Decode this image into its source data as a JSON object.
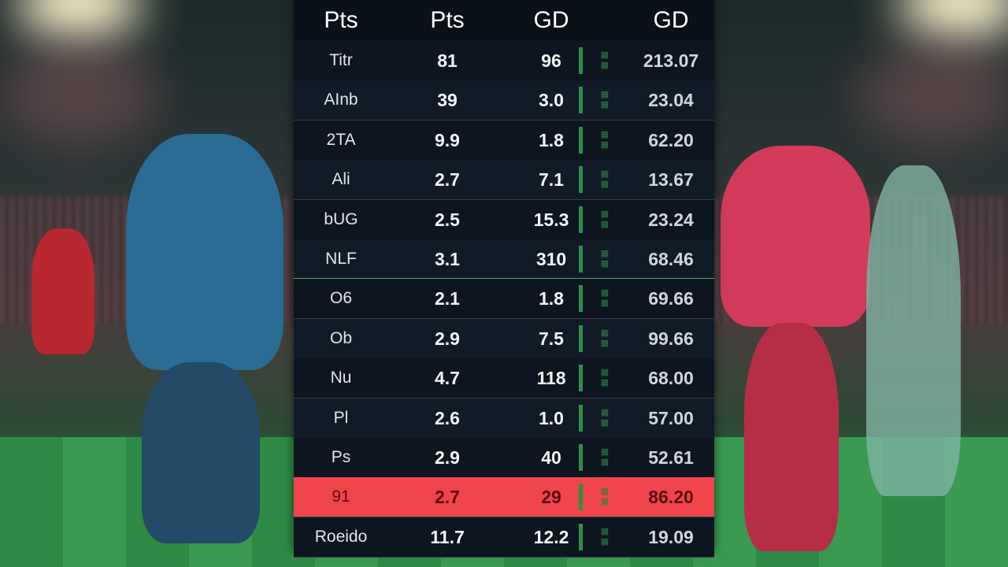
{
  "table": {
    "headers": [
      "Pts",
      "Pts",
      "GD",
      "GD"
    ],
    "rows": [
      [
        "Titr",
        "81",
        "96",
        "213.07"
      ],
      [
        "AInb",
        "39",
        "3.0",
        "23.04"
      ],
      [
        "2TA",
        "9.9",
        "1.8",
        "62.20"
      ],
      [
        "Ali",
        "2.7",
        "7.1",
        "13.67"
      ],
      [
        "bUG",
        "2.5",
        "15.3",
        "23.24"
      ],
      [
        "NLF",
        "3.1",
        "310",
        "68.46"
      ],
      [
        "O6",
        "2.1",
        "1.8",
        "69.66"
      ],
      [
        "Ob",
        "2.9",
        "7.5",
        "99.66"
      ],
      [
        "Nu",
        "4.7",
        "118",
        "68.00"
      ],
      [
        "Pl",
        "2.6",
        "1.0",
        "57.00"
      ],
      [
        "Ps",
        "2.9",
        "40",
        "52.61"
      ],
      [
        "91",
        "2.7",
        "29",
        "86.20"
      ],
      [
        "Roeido",
        "11.7",
        "12.2",
        "19.09"
      ]
    ]
  }
}
